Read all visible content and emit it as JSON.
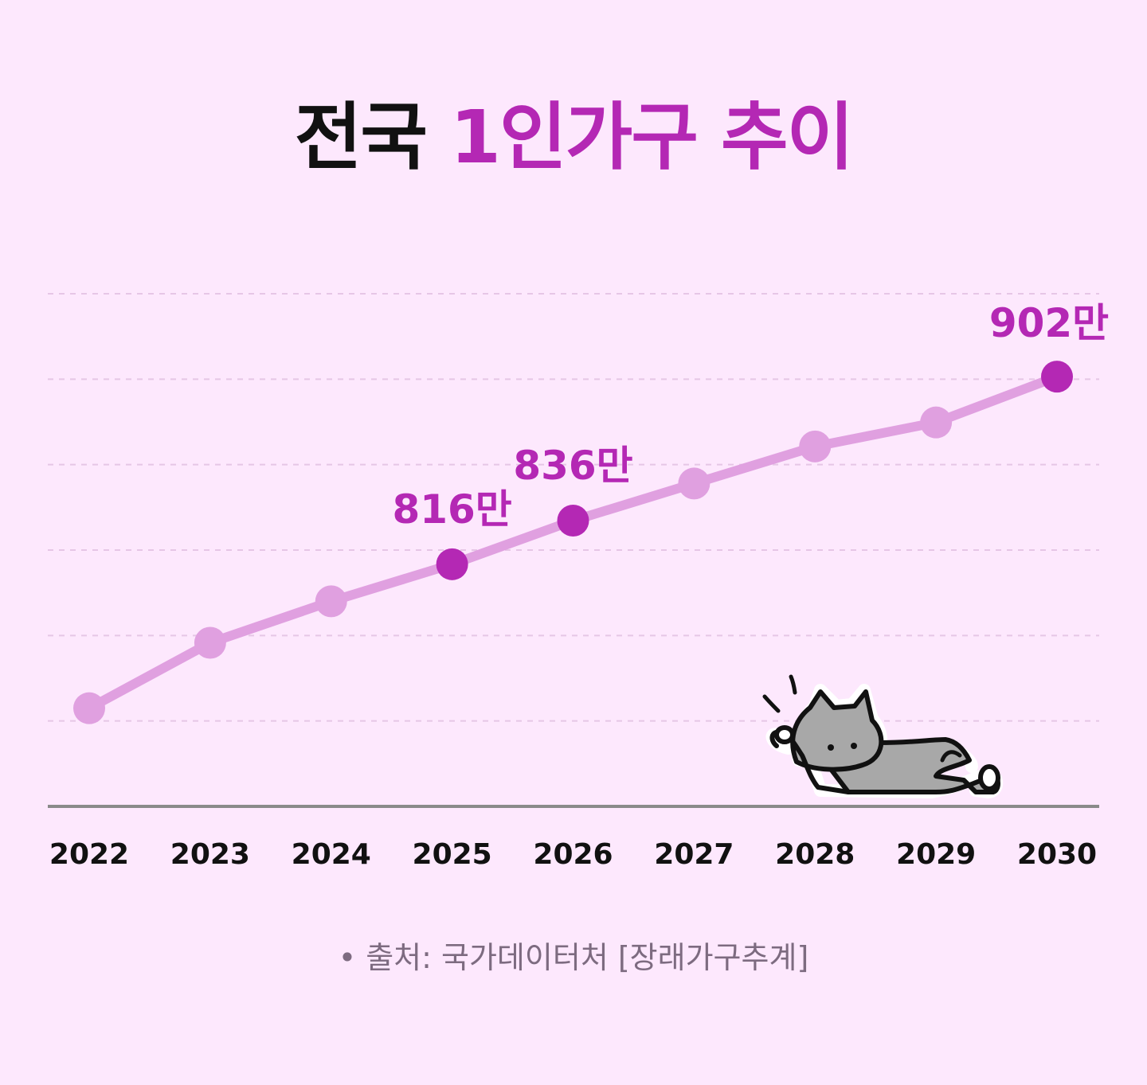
{
  "title": {
    "part1": "전국",
    "part2": "1인가구 추이"
  },
  "colors": {
    "background": "#fde8fd",
    "title_dark": "#111111",
    "accent": "#b428b4",
    "line": "#e0a0e0",
    "axis": "#8a8a8a",
    "grid": "#e6c6e6",
    "source_text": "#7d6b80",
    "cat_fill": "#a8a8a8"
  },
  "chart_data": {
    "type": "line",
    "title": "전국 1인가구 추이",
    "xlabel": "",
    "ylabel": "",
    "categories": [
      "2022",
      "2023",
      "2024",
      "2025",
      "2026",
      "2027",
      "2028",
      "2029",
      "2030"
    ],
    "series": [
      {
        "values": [
          750,
          780,
          799,
          816,
          836,
          853,
          870,
          881,
          902
        ],
        "highlighted_index": [
          3,
          4,
          8
        ],
        "value_labels": [
          "",
          "",
          "",
          "816만",
          "836만",
          "",
          "",
          "",
          "902만"
        ]
      }
    ],
    "ylim": [
      705,
      940
    ],
    "grid": "horizontal-dashed",
    "legend": "none"
  },
  "source": {
    "text": "• 출처: 국가데이터처 [장래가구추계]"
  },
  "decoration": {
    "icon": "lying-cat-icon"
  }
}
